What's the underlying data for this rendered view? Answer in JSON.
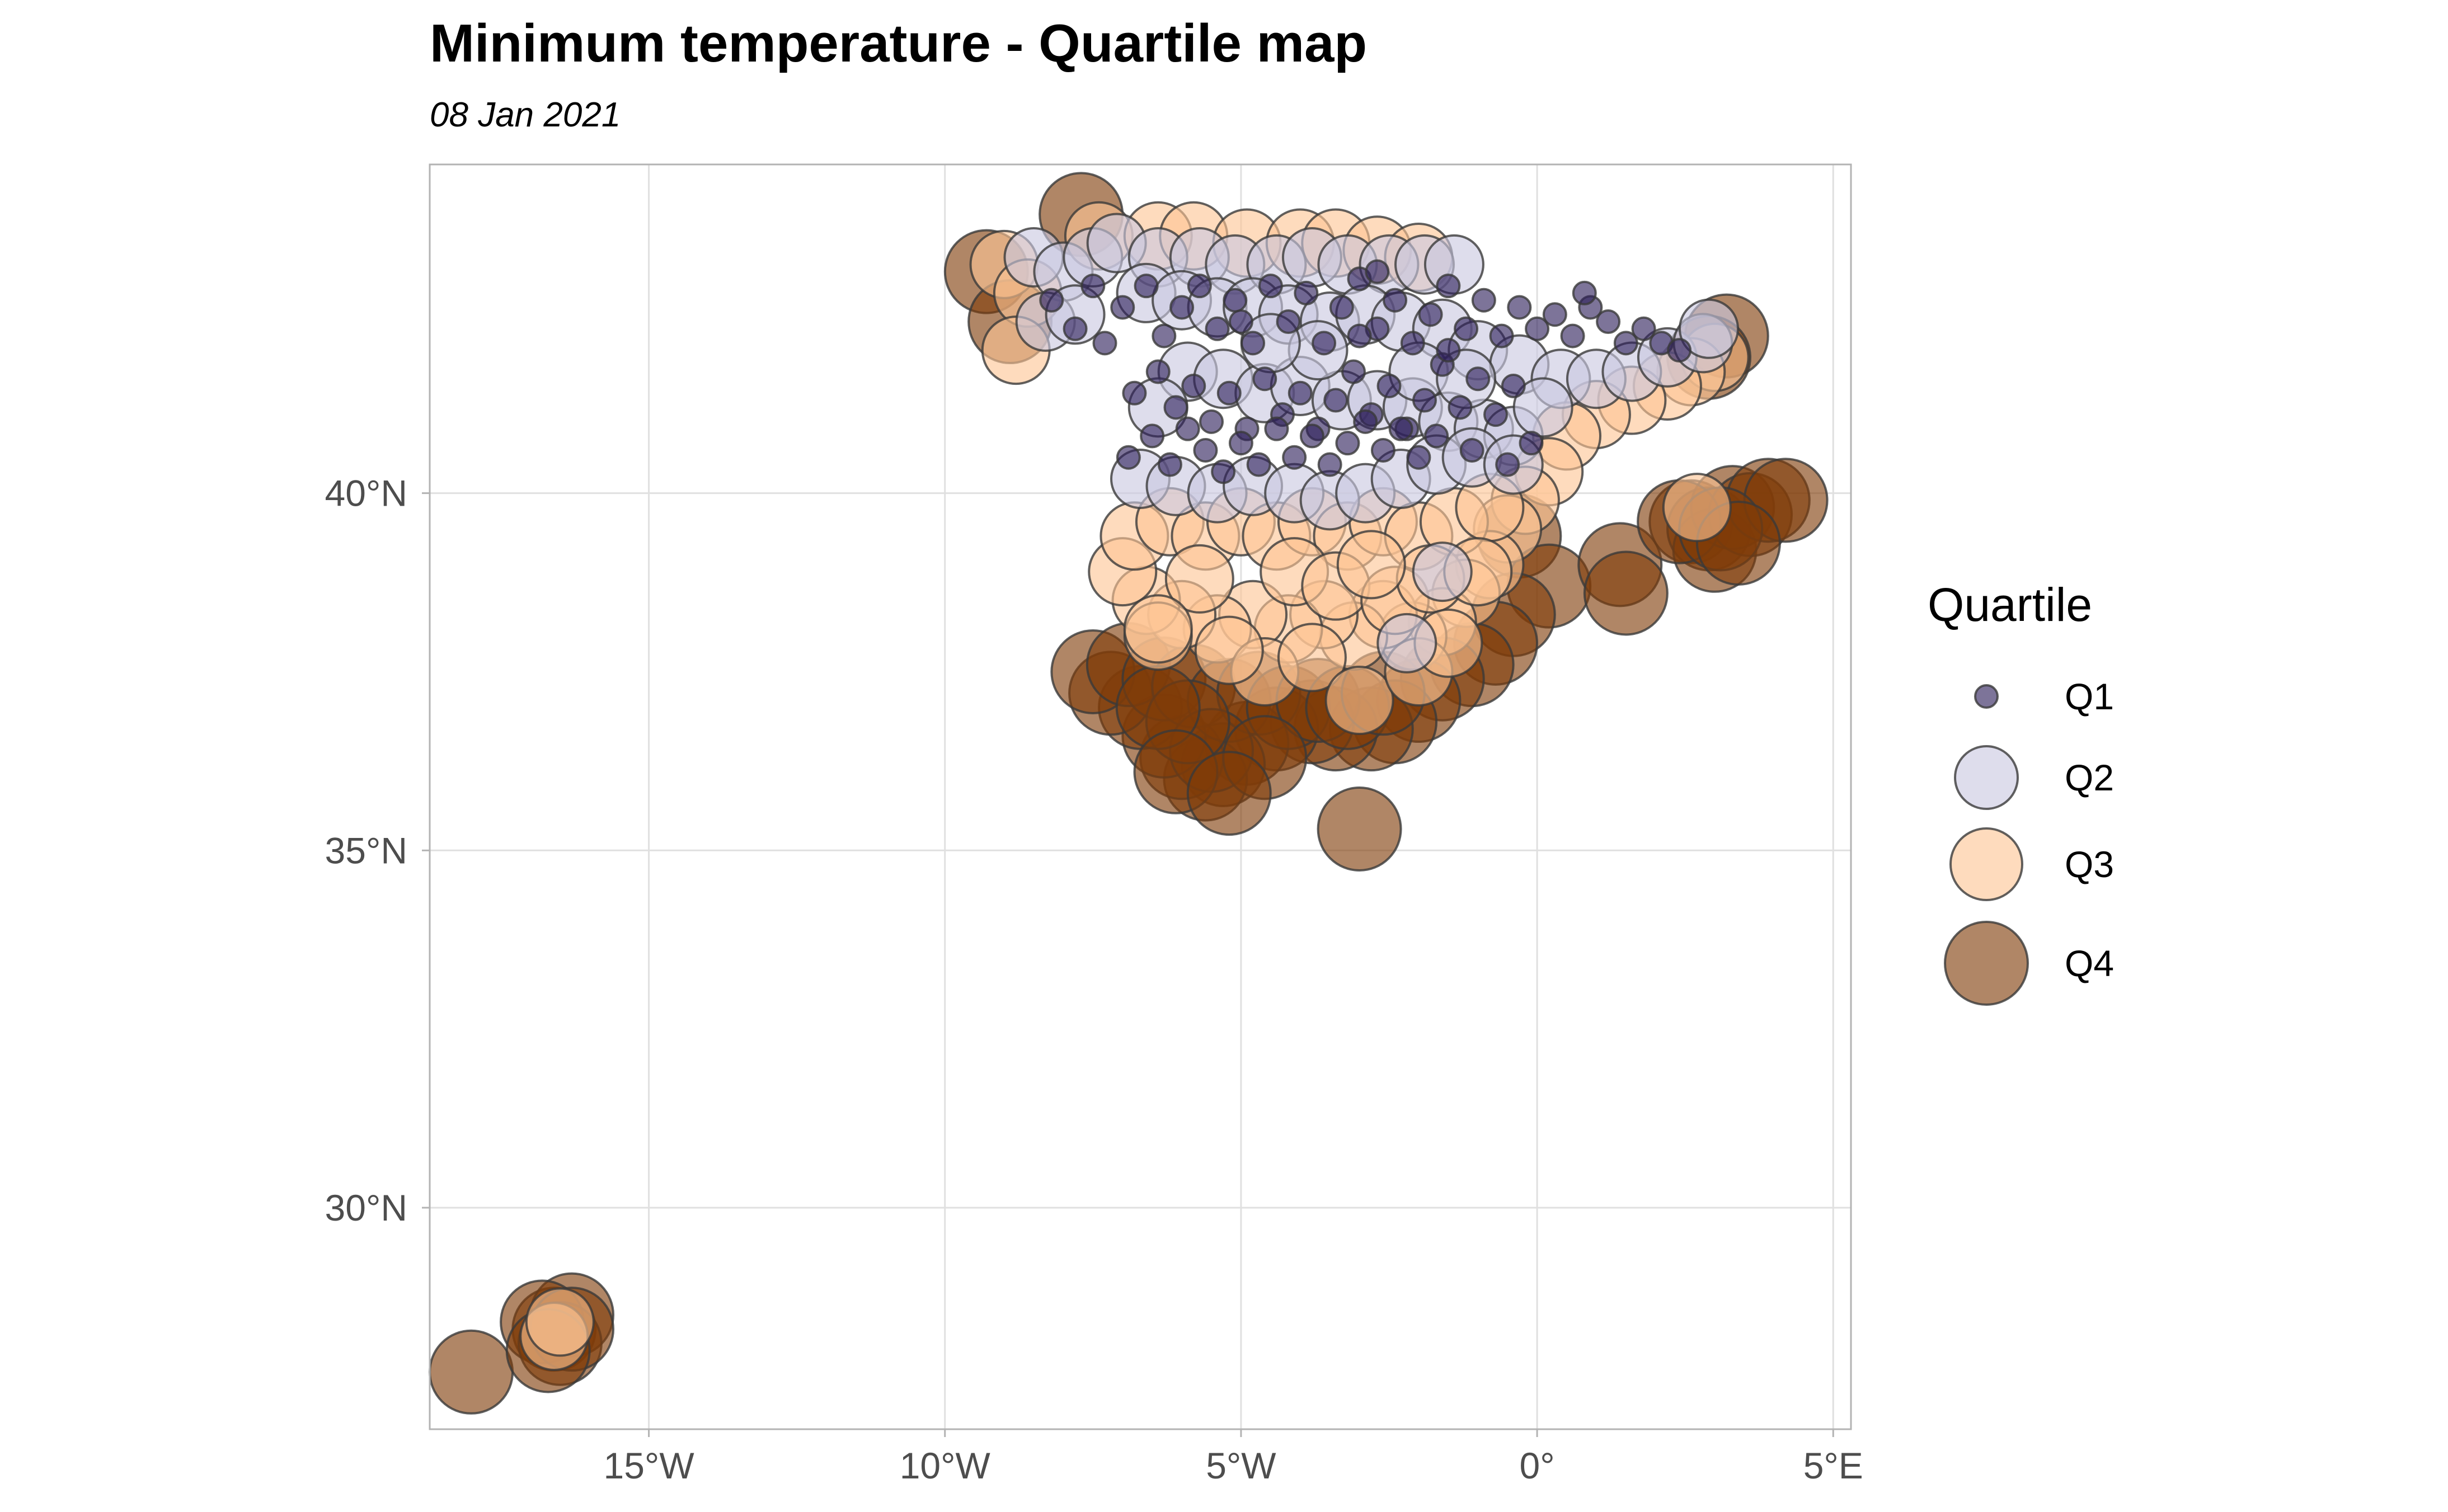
{
  "chart_data": {
    "type": "scatter",
    "title": "Minimum temperature - Quartile map",
    "subtitle": "08 Jan 2021",
    "xlabel": "",
    "ylabel": "",
    "xlim": [
      -18.7,
      5.3
    ],
    "ylim": [
      26.9,
      44.6
    ],
    "x_ticks": [
      {
        "value": -15,
        "label": "15°W"
      },
      {
        "value": -10,
        "label": "10°W"
      },
      {
        "value": -5,
        "label": "5°W"
      },
      {
        "value": 0,
        "label": "0°"
      },
      {
        "value": 5,
        "label": "5°E"
      }
    ],
    "y_ticks": [
      {
        "value": 30,
        "label": "30°N"
      },
      {
        "value": 35,
        "label": "35°N"
      },
      {
        "value": 40,
        "label": "40°N"
      }
    ],
    "grid": true,
    "legend": {
      "title": "Quartile",
      "position": "right",
      "entries": [
        {
          "label": "Q1",
          "color": "#2d1e5a",
          "size": 1
        },
        {
          "label": "Q2",
          "color": "#c9c8e0",
          "size": 2
        },
        {
          "label": "Q3",
          "color": "#fdc594",
          "size": 3
        },
        {
          "label": "Q4",
          "color": "#7f3b08",
          "size": 4
        }
      ]
    },
    "series": [
      {
        "name": "Q4",
        "color": "#7f3b08",
        "points": [
          [
            -7.7,
            43.9
          ],
          [
            -9.3,
            43.1
          ],
          [
            -8.9,
            42.4
          ],
          [
            3.2,
            42.2
          ],
          [
            2.9,
            41.9
          ],
          [
            -0.3,
            39.4
          ],
          [
            0.2,
            38.7
          ],
          [
            -0.4,
            38.3
          ],
          [
            -0.7,
            37.9
          ],
          [
            -1.1,
            37.6
          ],
          [
            -1.6,
            37.4
          ],
          [
            -2.0,
            37.1
          ],
          [
            -2.4,
            36.8
          ],
          [
            -2.8,
            36.7
          ],
          [
            -3.4,
            36.7
          ],
          [
            -3.8,
            36.8
          ],
          [
            -4.4,
            36.7
          ],
          [
            -4.9,
            36.5
          ],
          [
            -5.3,
            36.2
          ],
          [
            -5.6,
            36.0
          ],
          [
            -6.0,
            36.3
          ],
          [
            -6.3,
            36.6
          ],
          [
            -6.7,
            37.0
          ],
          [
            -7.2,
            37.2
          ],
          [
            -7.5,
            37.5
          ],
          [
            -6.9,
            37.6
          ],
          [
            -6.3,
            37.4
          ],
          [
            -5.8,
            37.3
          ],
          [
            -5.2,
            37.1
          ],
          [
            -4.7,
            37.2
          ],
          [
            -4.2,
            37.0
          ],
          [
            -3.7,
            37.1
          ],
          [
            -3.2,
            37.0
          ],
          [
            -2.6,
            37.2
          ],
          [
            -5.5,
            36.4
          ],
          [
            -4.6,
            36.3
          ],
          [
            -5.9,
            36.8
          ],
          [
            -6.4,
            37.0
          ],
          [
            -6.1,
            36.1
          ],
          [
            -5.2,
            35.8
          ],
          [
            -3.0,
            35.3
          ],
          [
            1.4,
            39.0
          ],
          [
            1.5,
            38.6
          ],
          [
            2.6,
            39.6
          ],
          [
            2.9,
            39.5
          ],
          [
            3.0,
            39.2
          ],
          [
            3.3,
            39.8
          ],
          [
            3.6,
            39.7
          ],
          [
            3.9,
            39.9
          ],
          [
            4.2,
            39.9
          ],
          [
            2.4,
            39.6
          ],
          [
            3.1,
            39.5
          ],
          [
            3.4,
            39.3
          ],
          [
            -18.0,
            27.7
          ],
          [
            -16.6,
            28.3
          ],
          [
            -16.3,
            28.5
          ],
          [
            -16.8,
            28.4
          ],
          [
            -16.5,
            28.1
          ],
          [
            -16.3,
            28.3
          ],
          [
            -16.7,
            28.0
          ]
        ]
      },
      {
        "name": "Q3",
        "color": "#fdc594",
        "points": [
          [
            -9.0,
            43.2
          ],
          [
            -8.6,
            42.8
          ],
          [
            -8.8,
            42.0
          ],
          [
            -7.4,
            43.6
          ],
          [
            -6.4,
            43.6
          ],
          [
            -5.8,
            43.6
          ],
          [
            -4.9,
            43.5
          ],
          [
            -4.0,
            43.5
          ],
          [
            -3.4,
            43.5
          ],
          [
            -2.7,
            43.4
          ],
          [
            -2.0,
            43.3
          ],
          [
            3.0,
            41.9
          ],
          [
            2.6,
            41.7
          ],
          [
            2.2,
            41.5
          ],
          [
            1.6,
            41.3
          ],
          [
            1.0,
            41.1
          ],
          [
            0.5,
            40.8
          ],
          [
            0.2,
            40.3
          ],
          [
            -0.2,
            39.9
          ],
          [
            -0.5,
            39.5
          ],
          [
            -0.8,
            39.0
          ],
          [
            -1.2,
            38.6
          ],
          [
            -1.6,
            38.2
          ],
          [
            -2.1,
            38.0
          ],
          [
            -2.6,
            38.3
          ],
          [
            -3.1,
            38.0
          ],
          [
            -3.6,
            38.3
          ],
          [
            -4.2,
            38.1
          ],
          [
            -4.8,
            38.3
          ],
          [
            -5.4,
            38.1
          ],
          [
            -6.0,
            38.3
          ],
          [
            -6.6,
            38.5
          ],
          [
            -7.0,
            38.9
          ],
          [
            -6.8,
            39.4
          ],
          [
            -6.2,
            39.6
          ],
          [
            -5.6,
            39.4
          ],
          [
            -5.0,
            39.6
          ],
          [
            -4.4,
            39.4
          ],
          [
            -3.8,
            39.6
          ],
          [
            -3.2,
            39.4
          ],
          [
            -2.6,
            39.6
          ],
          [
            -2.0,
            39.4
          ],
          [
            -1.4,
            39.6
          ],
          [
            -0.8,
            39.8
          ],
          [
            -6.4,
            38.0
          ],
          [
            -5.7,
            38.8
          ],
          [
            -4.1,
            38.9
          ],
          [
            -3.4,
            38.7
          ],
          [
            -2.4,
            38.5
          ],
          [
            -1.8,
            38.8
          ],
          [
            -1.0,
            38.9
          ],
          [
            -4.6,
            37.5
          ],
          [
            -3.8,
            37.7
          ],
          [
            -3.0,
            37.1
          ],
          [
            -2.0,
            37.5
          ],
          [
            -5.2,
            37.8
          ],
          [
            -6.4,
            38.1
          ],
          [
            -1.5,
            37.9
          ],
          [
            -2.8,
            39.0
          ],
          [
            2.7,
            39.8
          ],
          [
            -16.6,
            28.2
          ],
          [
            -16.5,
            28.4
          ]
        ]
      },
      {
        "name": "Q2",
        "color": "#c9c8e0",
        "points": [
          [
            -8.5,
            43.3
          ],
          [
            -8.0,
            43.1
          ],
          [
            -7.5,
            43.3
          ],
          [
            -7.1,
            43.5
          ],
          [
            -6.4,
            43.3
          ],
          [
            -5.7,
            43.3
          ],
          [
            -5.1,
            43.2
          ],
          [
            -4.4,
            43.2
          ],
          [
            -3.8,
            43.3
          ],
          [
            -3.2,
            43.2
          ],
          [
            -2.5,
            43.2
          ],
          [
            -1.9,
            43.2
          ],
          [
            -1.4,
            43.2
          ],
          [
            -8.3,
            42.4
          ],
          [
            -7.8,
            42.5
          ],
          [
            -6.6,
            42.8
          ],
          [
            -6.0,
            42.7
          ],
          [
            -5.4,
            42.6
          ],
          [
            -4.8,
            42.6
          ],
          [
            -4.2,
            42.5
          ],
          [
            -3.5,
            42.4
          ],
          [
            -2.9,
            42.5
          ],
          [
            -2.3,
            42.4
          ],
          [
            -1.6,
            42.3
          ],
          [
            -1.0,
            42.0
          ],
          [
            -0.3,
            41.8
          ],
          [
            0.4,
            41.6
          ],
          [
            1.0,
            41.6
          ],
          [
            1.6,
            41.7
          ],
          [
            2.2,
            41.9
          ],
          [
            2.8,
            42.1
          ],
          [
            2.9,
            42.3
          ],
          [
            -5.9,
            41.7
          ],
          [
            -5.3,
            41.6
          ],
          [
            -4.6,
            41.4
          ],
          [
            -4.0,
            41.5
          ],
          [
            -3.3,
            41.3
          ],
          [
            -2.7,
            41.3
          ],
          [
            -2.1,
            41.2
          ],
          [
            -1.5,
            41.0
          ],
          [
            -0.9,
            40.9
          ],
          [
            -0.4,
            40.8
          ],
          [
            -6.7,
            40.2
          ],
          [
            -6.1,
            40.1
          ],
          [
            -5.4,
            40.0
          ],
          [
            -4.8,
            40.1
          ],
          [
            -4.1,
            40.0
          ],
          [
            -3.5,
            39.9
          ],
          [
            -2.9,
            40.0
          ],
          [
            -2.3,
            40.2
          ],
          [
            -1.7,
            40.4
          ],
          [
            -1.1,
            40.5
          ],
          [
            -0.4,
            40.4
          ],
          [
            -1.6,
            38.9
          ],
          [
            -2.2,
            37.9
          ],
          [
            -3.7,
            42.0
          ],
          [
            -2.0,
            41.7
          ],
          [
            -4.5,
            42.1
          ],
          [
            -6.4,
            41.2
          ],
          [
            -1.2,
            41.6
          ],
          [
            0.1,
            41.2
          ]
        ]
      },
      {
        "name": "Q1",
        "color": "#2d1e5a",
        "points": [
          [
            -8.2,
            42.7
          ],
          [
            -7.8,
            42.3
          ],
          [
            -7.5,
            42.9
          ],
          [
            -7.3,
            42.1
          ],
          [
            -7.0,
            42.6
          ],
          [
            -6.6,
            42.9
          ],
          [
            -6.3,
            42.2
          ],
          [
            -6.0,
            42.6
          ],
          [
            -5.7,
            42.9
          ],
          [
            -5.4,
            42.3
          ],
          [
            -5.1,
            42.7
          ],
          [
            -4.8,
            42.1
          ],
          [
            -4.5,
            42.9
          ],
          [
            -4.2,
            42.4
          ],
          [
            -3.9,
            42.8
          ],
          [
            -3.6,
            42.1
          ],
          [
            -3.3,
            42.6
          ],
          [
            -3.0,
            43.0
          ],
          [
            -2.7,
            42.3
          ],
          [
            -2.4,
            42.7
          ],
          [
            -2.1,
            42.1
          ],
          [
            -1.8,
            42.5
          ],
          [
            -1.5,
            42.9
          ],
          [
            -1.2,
            42.3
          ],
          [
            -0.9,
            42.7
          ],
          [
            -0.6,
            42.2
          ],
          [
            -0.3,
            42.6
          ],
          [
            0.0,
            42.3
          ],
          [
            0.3,
            42.5
          ],
          [
            0.6,
            42.2
          ],
          [
            0.9,
            42.6
          ],
          [
            1.2,
            42.4
          ],
          [
            1.5,
            42.1
          ],
          [
            1.8,
            42.3
          ],
          [
            2.1,
            42.1
          ],
          [
            2.4,
            42.0
          ],
          [
            -6.8,
            41.4
          ],
          [
            -6.4,
            41.7
          ],
          [
            -6.1,
            41.2
          ],
          [
            -5.8,
            41.5
          ],
          [
            -5.5,
            41.0
          ],
          [
            -5.2,
            41.4
          ],
          [
            -4.9,
            40.9
          ],
          [
            -4.6,
            41.6
          ],
          [
            -4.3,
            41.1
          ],
          [
            -4.0,
            41.4
          ],
          [
            -3.7,
            40.9
          ],
          [
            -3.4,
            41.3
          ],
          [
            -3.1,
            41.7
          ],
          [
            -2.8,
            41.1
          ],
          [
            -2.5,
            41.5
          ],
          [
            -2.2,
            40.9
          ],
          [
            -1.9,
            41.3
          ],
          [
            -1.6,
            41.8
          ],
          [
            -1.3,
            41.2
          ],
          [
            -1.0,
            41.6
          ],
          [
            -0.7,
            41.1
          ],
          [
            -0.4,
            41.5
          ],
          [
            -6.9,
            40.5
          ],
          [
            -6.5,
            40.8
          ],
          [
            -6.2,
            40.4
          ],
          [
            -5.9,
            40.9
          ],
          [
            -5.6,
            40.6
          ],
          [
            -5.3,
            40.3
          ],
          [
            -5.0,
            40.7
          ],
          [
            -4.7,
            40.4
          ],
          [
            -4.4,
            40.9
          ],
          [
            -4.1,
            40.5
          ],
          [
            -3.8,
            40.8
          ],
          [
            -3.5,
            40.4
          ],
          [
            -3.2,
            40.7
          ],
          [
            -2.9,
            41.0
          ],
          [
            -2.6,
            40.6
          ],
          [
            -2.3,
            40.9
          ],
          [
            -2.0,
            40.5
          ],
          [
            -1.7,
            40.8
          ],
          [
            -1.1,
            40.6
          ],
          [
            -0.5,
            40.4
          ],
          [
            -0.1,
            40.7
          ],
          [
            -5.0,
            42.4
          ],
          [
            -3.0,
            42.2
          ],
          [
            -1.5,
            42.0
          ],
          [
            0.8,
            42.8
          ],
          [
            -2.7,
            43.1
          ]
        ]
      }
    ]
  }
}
